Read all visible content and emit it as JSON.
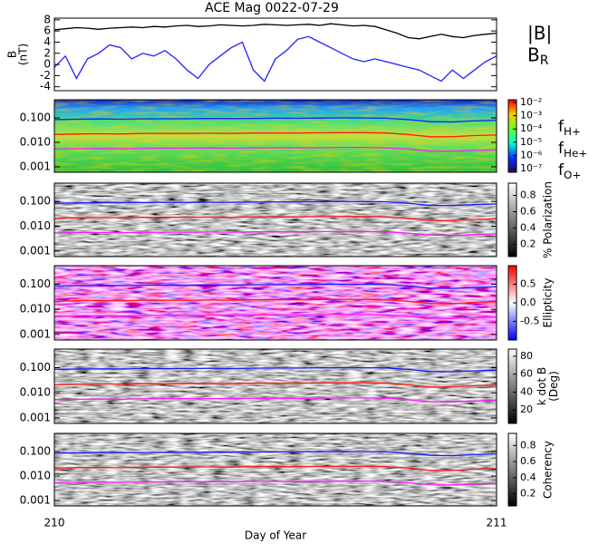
{
  "chart_data": [
    {
      "type": "line",
      "title": "ACE Mag 0022-07-29",
      "ylabel": [
        "B",
        "(nT)"
      ],
      "xlabel": "Day of Year",
      "xlim": [
        210,
        211
      ],
      "xticks": [
        210,
        211
      ],
      "ylim": [
        -4.7,
        8.3
      ],
      "yticks": [
        8,
        6,
        4,
        2,
        0,
        -2,
        -4
      ],
      "x": [
        210,
        210.025,
        210.05,
        210.075,
        210.1,
        210.125,
        210.15,
        210.175,
        210.2,
        210.225,
        210.25,
        210.275,
        210.3,
        210.325,
        210.35,
        210.375,
        210.4,
        210.425,
        210.45,
        210.475,
        210.5,
        210.525,
        210.55,
        210.575,
        210.6,
        210.625,
        210.65,
        210.675,
        210.7,
        210.725,
        210.75,
        210.775,
        210.8,
        210.825,
        210.85,
        210.875,
        210.9,
        210.925,
        210.95,
        210.975,
        211
      ],
      "series": [
        {
          "name": "|B|",
          "color": "#000000",
          "values": [
            6.2,
            6.4,
            6.6,
            6.5,
            6.3,
            6.5,
            6.6,
            6.7,
            6.6,
            6.8,
            6.7,
            6.9,
            7.0,
            6.8,
            6.9,
            7.1,
            7.0,
            6.9,
            7.0,
            7.2,
            7.1,
            7.0,
            7.1,
            7.2,
            7.0,
            7.3,
            7.1,
            6.9,
            7.0,
            6.8,
            6.2,
            5.6,
            4.8,
            4.6,
            5.0,
            5.4,
            5.0,
            4.8,
            5.2,
            5.4,
            5.6
          ]
        },
        {
          "name": "BR",
          "color": "#2020ff",
          "values": [
            -0.5,
            1.5,
            -2.5,
            1,
            2,
            3.5,
            3,
            1,
            2,
            1.5,
            2.5,
            1,
            -1,
            -2.5,
            0,
            1.5,
            3,
            4,
            -1,
            -3,
            1,
            2.5,
            4.5,
            5,
            4,
            3,
            2,
            1,
            0.5,
            1,
            0.5,
            0,
            -0.5,
            -1,
            -2,
            -3,
            -1,
            -2.5,
            -1,
            0.5,
            1.5
          ]
        }
      ]
    },
    {
      "type": "spectrogram",
      "log_y": true,
      "ylim": [
        0.0006,
        0.55
      ],
      "yticks": [
        {
          "value": 0.1,
          "label": "0.100"
        },
        {
          "value": 0.01,
          "label": "0.010"
        },
        0.001
      ],
      "colorbar": {
        "scale": "log",
        "colormap": "jet",
        "lim": [
          5.4e-08,
          0.016
        ],
        "ticks": [
          {
            "value": 0.01,
            "label": "10⁻²"
          },
          {
            "value": 0.001,
            "label": "10⁻³"
          },
          {
            "value": 0.0001,
            "label": "10⁻⁴"
          },
          {
            "value": 1e-05,
            "label": "10⁻⁵"
          },
          {
            "value": 1e-06,
            "label": "10⁻⁶"
          },
          {
            "value": 1e-07,
            "label": "10⁻⁷"
          }
        ]
      },
      "x": [
        210,
        210.05,
        210.1,
        210.15,
        210.2,
        210.25,
        210.3,
        210.35,
        210.4,
        210.45,
        210.5,
        210.55,
        210.6,
        210.65,
        210.7,
        210.75,
        210.8,
        210.85,
        210.9,
        210.95,
        211
      ],
      "series": [
        {
          "name": "fH+",
          "color": "#1a1aff",
          "values": [
            0.085,
            0.088,
            0.09,
            0.089,
            0.091,
            0.092,
            0.092,
            0.094,
            0.093,
            0.095,
            0.097,
            0.096,
            0.098,
            0.1,
            0.099,
            0.097,
            0.085,
            0.07,
            0.068,
            0.075,
            0.08
          ]
        },
        {
          "name": "fHe+",
          "color": "#ff1a1a",
          "values": [
            0.021,
            0.022,
            0.0225,
            0.022,
            0.023,
            0.023,
            0.023,
            0.0235,
            0.023,
            0.024,
            0.024,
            0.024,
            0.0245,
            0.025,
            0.025,
            0.024,
            0.021,
            0.017,
            0.017,
            0.019,
            0.02
          ]
        },
        {
          "name": "fO+",
          "color": "#ff1aff",
          "values": [
            0.0053,
            0.0055,
            0.0056,
            0.0055,
            0.0057,
            0.0058,
            0.0058,
            0.0059,
            0.0058,
            0.006,
            0.006,
            0.006,
            0.0061,
            0.0062,
            0.0062,
            0.006,
            0.0053,
            0.0044,
            0.0043,
            0.0047,
            0.005
          ]
        }
      ]
    },
    {
      "type": "spectrogram",
      "log_y": true,
      "ylim": [
        0.0006,
        0.55
      ],
      "yticks": [
        {
          "value": 0.1,
          "label": "0.100"
        },
        {
          "value": 0.01,
          "label": "0.010"
        },
        0.001
      ],
      "colorbar": {
        "label": [
          "% Polarization"
        ],
        "colormap": "gray",
        "lim": [
          0.05,
          0.95
        ],
        "ticks": [
          0.8,
          0.6,
          0.4,
          0.2
        ]
      }
    },
    {
      "type": "spectrogram",
      "log_y": true,
      "ylim": [
        0.0006,
        0.55
      ],
      "yticks": [
        {
          "value": 0.1,
          "label": "0.100"
        },
        {
          "value": 0.01,
          "label": "0.010"
        },
        0.001
      ],
      "colorbar": {
        "label": [
          "Ellipticity"
        ],
        "colormap": "bwr",
        "lim": [
          -1,
          1
        ],
        "ticks": [
          0.5,
          {
            "value": 0,
            "label": "0.0"
          },
          -0.5
        ]
      }
    },
    {
      "type": "spectrogram",
      "log_y": true,
      "ylim": [
        0.0006,
        0.55
      ],
      "yticks": [
        {
          "value": 0.1,
          "label": "0.100"
        },
        {
          "value": 0.01,
          "label": "0.010"
        },
        0.001
      ],
      "colorbar": {
        "label": [
          "k dot B",
          "(Deg)"
        ],
        "colormap": "gray",
        "lim": [
          5,
          88
        ],
        "ticks": [
          80,
          60,
          40,
          20
        ]
      }
    },
    {
      "type": "spectrogram",
      "log_y": true,
      "ylim": [
        0.0006,
        0.55
      ],
      "yticks": [
        {
          "value": 0.1,
          "label": "0.100"
        },
        {
          "value": 0.01,
          "label": "0.010"
        },
        0.001
      ],
      "colorbar": {
        "label": [
          "Coherency"
        ],
        "colormap": "gray",
        "lim": [
          0.05,
          0.95
        ],
        "ticks": [
          0.8,
          0.6,
          0.4,
          0.2
        ]
      }
    }
  ]
}
